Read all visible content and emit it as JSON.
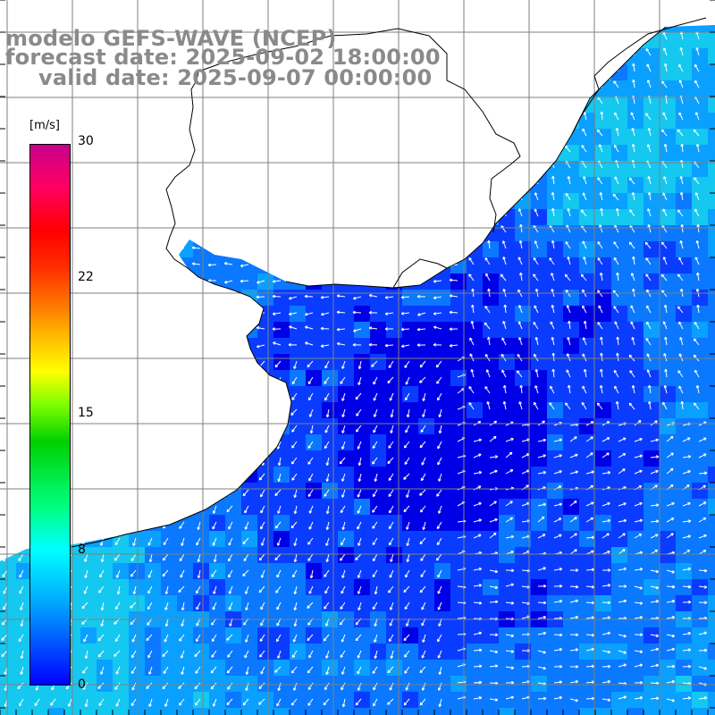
{
  "title": {
    "line1": "modelo GEFS-WAVE (NCEP)",
    "line2": "forecast date: 2025-09-02 18:00:00",
    "line3": "valid date: 2025-09-07 00:00:00"
  },
  "colorbar": {
    "unit": "[m/s]",
    "ticks": [
      "30",
      "22",
      "15",
      "8",
      "0"
    ],
    "colors": [
      "#0000ff",
      "#00a6ff",
      "#00ffff",
      "#00d000",
      "#ffff00",
      "#ff7a00",
      "#ff0000",
      "#c8008c"
    ]
  },
  "map": {
    "variable": "wind speed and direction",
    "land_color": "#ffffff",
    "grid_color": "#7f7f7f",
    "arrow_color": "#ffffff",
    "coastline_color": "#000000",
    "ocean_palette": [
      "#0000e6",
      "#0a3cff",
      "#0a78ff",
      "#0aa0ff",
      "#14c8f0"
    ]
  }
}
